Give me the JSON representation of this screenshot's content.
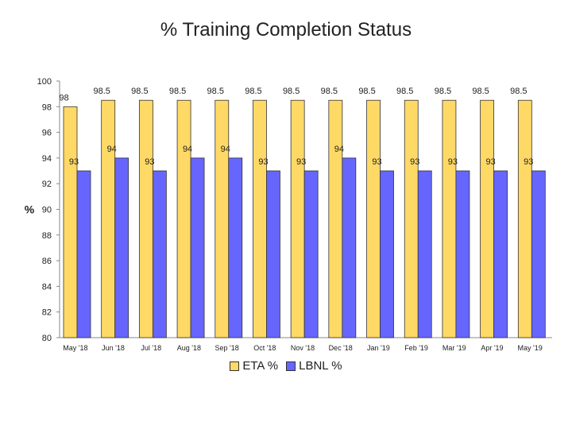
{
  "chart_data": {
    "type": "bar",
    "title": "% Training Completion Status",
    "ylabel": "%",
    "xlabel": "",
    "ylim": [
      80,
      100
    ],
    "yticks": [
      80,
      82,
      84,
      86,
      88,
      90,
      92,
      94,
      96,
      98,
      100
    ],
    "categories": [
      "May '18",
      "Jun '18",
      "Jul '18",
      "Aug '18",
      "Sep '18",
      "Oct '18",
      "Nov '18",
      "Dec '18",
      "Jan '19",
      "Feb '19",
      "Mar '19",
      "Apr '19",
      "May '19"
    ],
    "series": [
      {
        "name": "ETA %",
        "color": "#FFD966",
        "values": [
          98,
          98.5,
          98.5,
          98.5,
          98.5,
          98.5,
          98.5,
          98.5,
          98.5,
          98.5,
          98.5,
          98.5,
          98.5
        ]
      },
      {
        "name": "LBNL %",
        "color": "#6666FF",
        "values": [
          93,
          94,
          93,
          94,
          94,
          93,
          93,
          94,
          93,
          93,
          93,
          93,
          93
        ]
      }
    ],
    "grid": false,
    "legend_position": "bottom"
  }
}
